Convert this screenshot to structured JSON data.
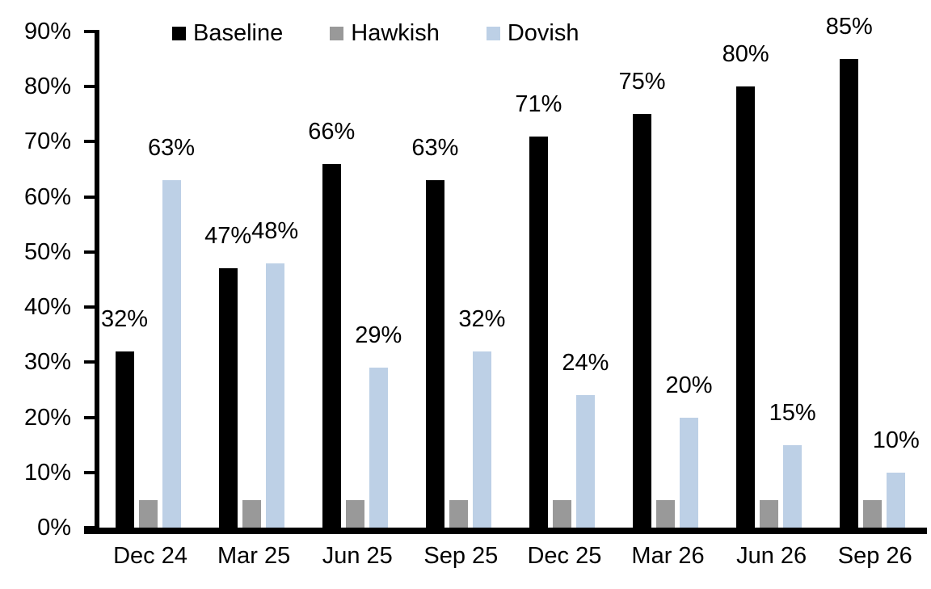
{
  "chart_data": {
    "type": "bar",
    "title": "",
    "xlabel": "",
    "ylabel": "",
    "categories": [
      "Dec 24",
      "Mar 25",
      "Jun 25",
      "Sep 25",
      "Dec 25",
      "Mar 26",
      "Jun 26",
      "Sep 26"
    ],
    "series": [
      {
        "name": "Baseline",
        "color": "#000000",
        "values": [
          32,
          47,
          66,
          63,
          71,
          75,
          80,
          85
        ],
        "data_labels_visible": true
      },
      {
        "name": "Hawkish",
        "color": "#999999",
        "values": [
          5,
          5,
          5,
          5,
          5,
          5,
          5,
          5
        ],
        "data_labels_visible": false
      },
      {
        "name": "Dovish",
        "color": "#bdd0e6",
        "values": [
          63,
          48,
          29,
          32,
          24,
          20,
          15,
          10
        ],
        "data_labels_visible": true
      }
    ],
    "label_format": "percent",
    "ylim": [
      0,
      90
    ],
    "ytick_step": 10,
    "ytick_labels": [
      "0%",
      "10%",
      "20%",
      "30%",
      "40%",
      "50%",
      "60%",
      "70%",
      "80%",
      "90%"
    ],
    "grid": false,
    "legend_position": "top",
    "axis_color": "#000000",
    "text_color": "#000000"
  }
}
